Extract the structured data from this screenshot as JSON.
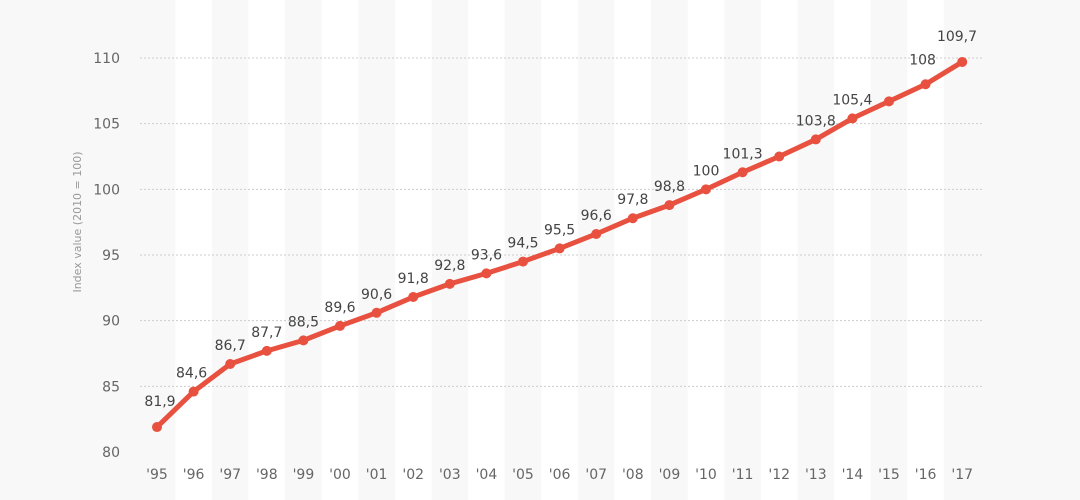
{
  "chart_data": {
    "type": "line",
    "title": "",
    "xlabel": "",
    "ylabel": "Index value (2010 = 100)",
    "categories": [
      "'95",
      "'96",
      "'97",
      "'98",
      "'99",
      "'00",
      "'01",
      "'02",
      "'03",
      "'04",
      "'05",
      "'06",
      "'07",
      "'08",
      "'09",
      "'10",
      "'11",
      "'12",
      "'13",
      "'14",
      "'15",
      "'16",
      "'17"
    ],
    "series": [
      {
        "values": [
          81.9,
          84.6,
          86.7,
          87.7,
          88.5,
          89.6,
          90.6,
          91.8,
          92.8,
          93.6,
          94.5,
          95.5,
          96.6,
          97.8,
          98.8,
          100,
          101.3,
          102.5,
          103.8,
          105.4,
          106.7,
          108,
          109.7
        ],
        "color": "#e8503f"
      }
    ],
    "data_labels": [
      "81,9",
      "84,6",
      "86,7",
      "87,7",
      "88,5",
      "89,6",
      "90,6",
      "91,8",
      "92,8",
      "93,6",
      "94,5",
      "95,5",
      "96,6",
      "97,8",
      "98,8",
      "100",
      "101,3",
      "",
      "103,8",
      "105,4",
      "",
      "108",
      "109,7"
    ],
    "yticks": [
      80,
      85,
      90,
      95,
      100,
      105,
      110
    ],
    "ylim": [
      80,
      110
    ],
    "grid": true,
    "legend": "none",
    "colors": {
      "line": "#e8503f",
      "background": "#f8f8f8",
      "band": "#ffffff",
      "grid": "#cccccc",
      "tick_text": "#666666",
      "label_text": "#444444"
    }
  }
}
